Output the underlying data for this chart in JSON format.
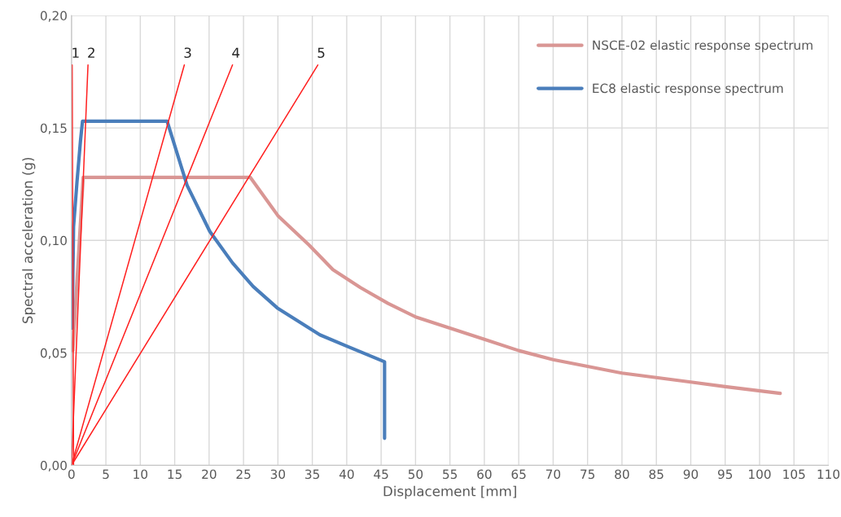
{
  "chart_data": {
    "type": "line",
    "xlabel": "Displacement [mm]",
    "ylabel": "Spectral acceleration (g)",
    "xlim": [
      0,
      110
    ],
    "xticks": [
      0,
      5,
      10,
      15,
      20,
      25,
      30,
      35,
      40,
      45,
      50,
      55,
      60,
      65,
      70,
      75,
      80,
      85,
      90,
      95,
      100,
      105,
      110
    ],
    "ylim": [
      0,
      0.2
    ],
    "yticks": [
      {
        "value": 0,
        "label": "0,00"
      },
      {
        "value": 0.05,
        "label": "0,05"
      },
      {
        "value": 0.1,
        "label": "0,10"
      },
      {
        "value": 0.15,
        "label": "0,15"
      },
      {
        "value": 0.2,
        "label": "0,20"
      }
    ],
    "grid": true,
    "legend": "top right",
    "series": [
      {
        "name": "NSCE-02 elastic response spectrum",
        "color": "#d99694",
        "x": [
          0.2,
          1.7,
          26,
          30,
          34.5,
          38,
          42,
          46,
          50,
          55,
          60,
          65,
          70,
          75,
          80,
          85,
          90,
          95,
          103
        ],
        "values": [
          0.051,
          0.128,
          0.128,
          0.111,
          0.098,
          0.087,
          0.079,
          0.072,
          0.066,
          0.061,
          0.056,
          0.051,
          0.047,
          0.044,
          0.041,
          0.039,
          0.037,
          0.035,
          0.032
        ]
      },
      {
        "name": "EC8 elastic response spectrum",
        "color": "#4a7ebb",
        "x": [
          0.1,
          0.3,
          0.8,
          1.3,
          1.6,
          13.9,
          16.8,
          20.1,
          23.4,
          26.4,
          29.9,
          33,
          36.1,
          40,
          45.5,
          45.5
        ],
        "values": [
          0.061,
          0.106,
          0.126,
          0.144,
          0.153,
          0.153,
          0.1245,
          0.104,
          0.09,
          0.0795,
          0.07,
          0.064,
          0.058,
          0.053,
          0.046,
          0.012
        ]
      },
      {
        "color": "#ff2020",
        "x": [
          0.3,
          0.1
        ],
        "values": [
          0,
          0.178
        ]
      },
      {
        "color": "#ff2020",
        "x": [
          0,
          2.4
        ],
        "values": [
          0,
          0.178
        ]
      },
      {
        "color": "#ff2020",
        "x": [
          0,
          16.4
        ],
        "values": [
          0,
          0.178
        ]
      },
      {
        "color": "#ff2020",
        "x": [
          0,
          23.4
        ],
        "values": [
          0,
          0.178
        ]
      },
      {
        "color": "#ff2020",
        "x": [
          0,
          35.8
        ],
        "values": [
          0,
          0.178
        ]
      }
    ],
    "annotations": [
      "1",
      "2",
      "3",
      "4",
      "5"
    ]
  }
}
